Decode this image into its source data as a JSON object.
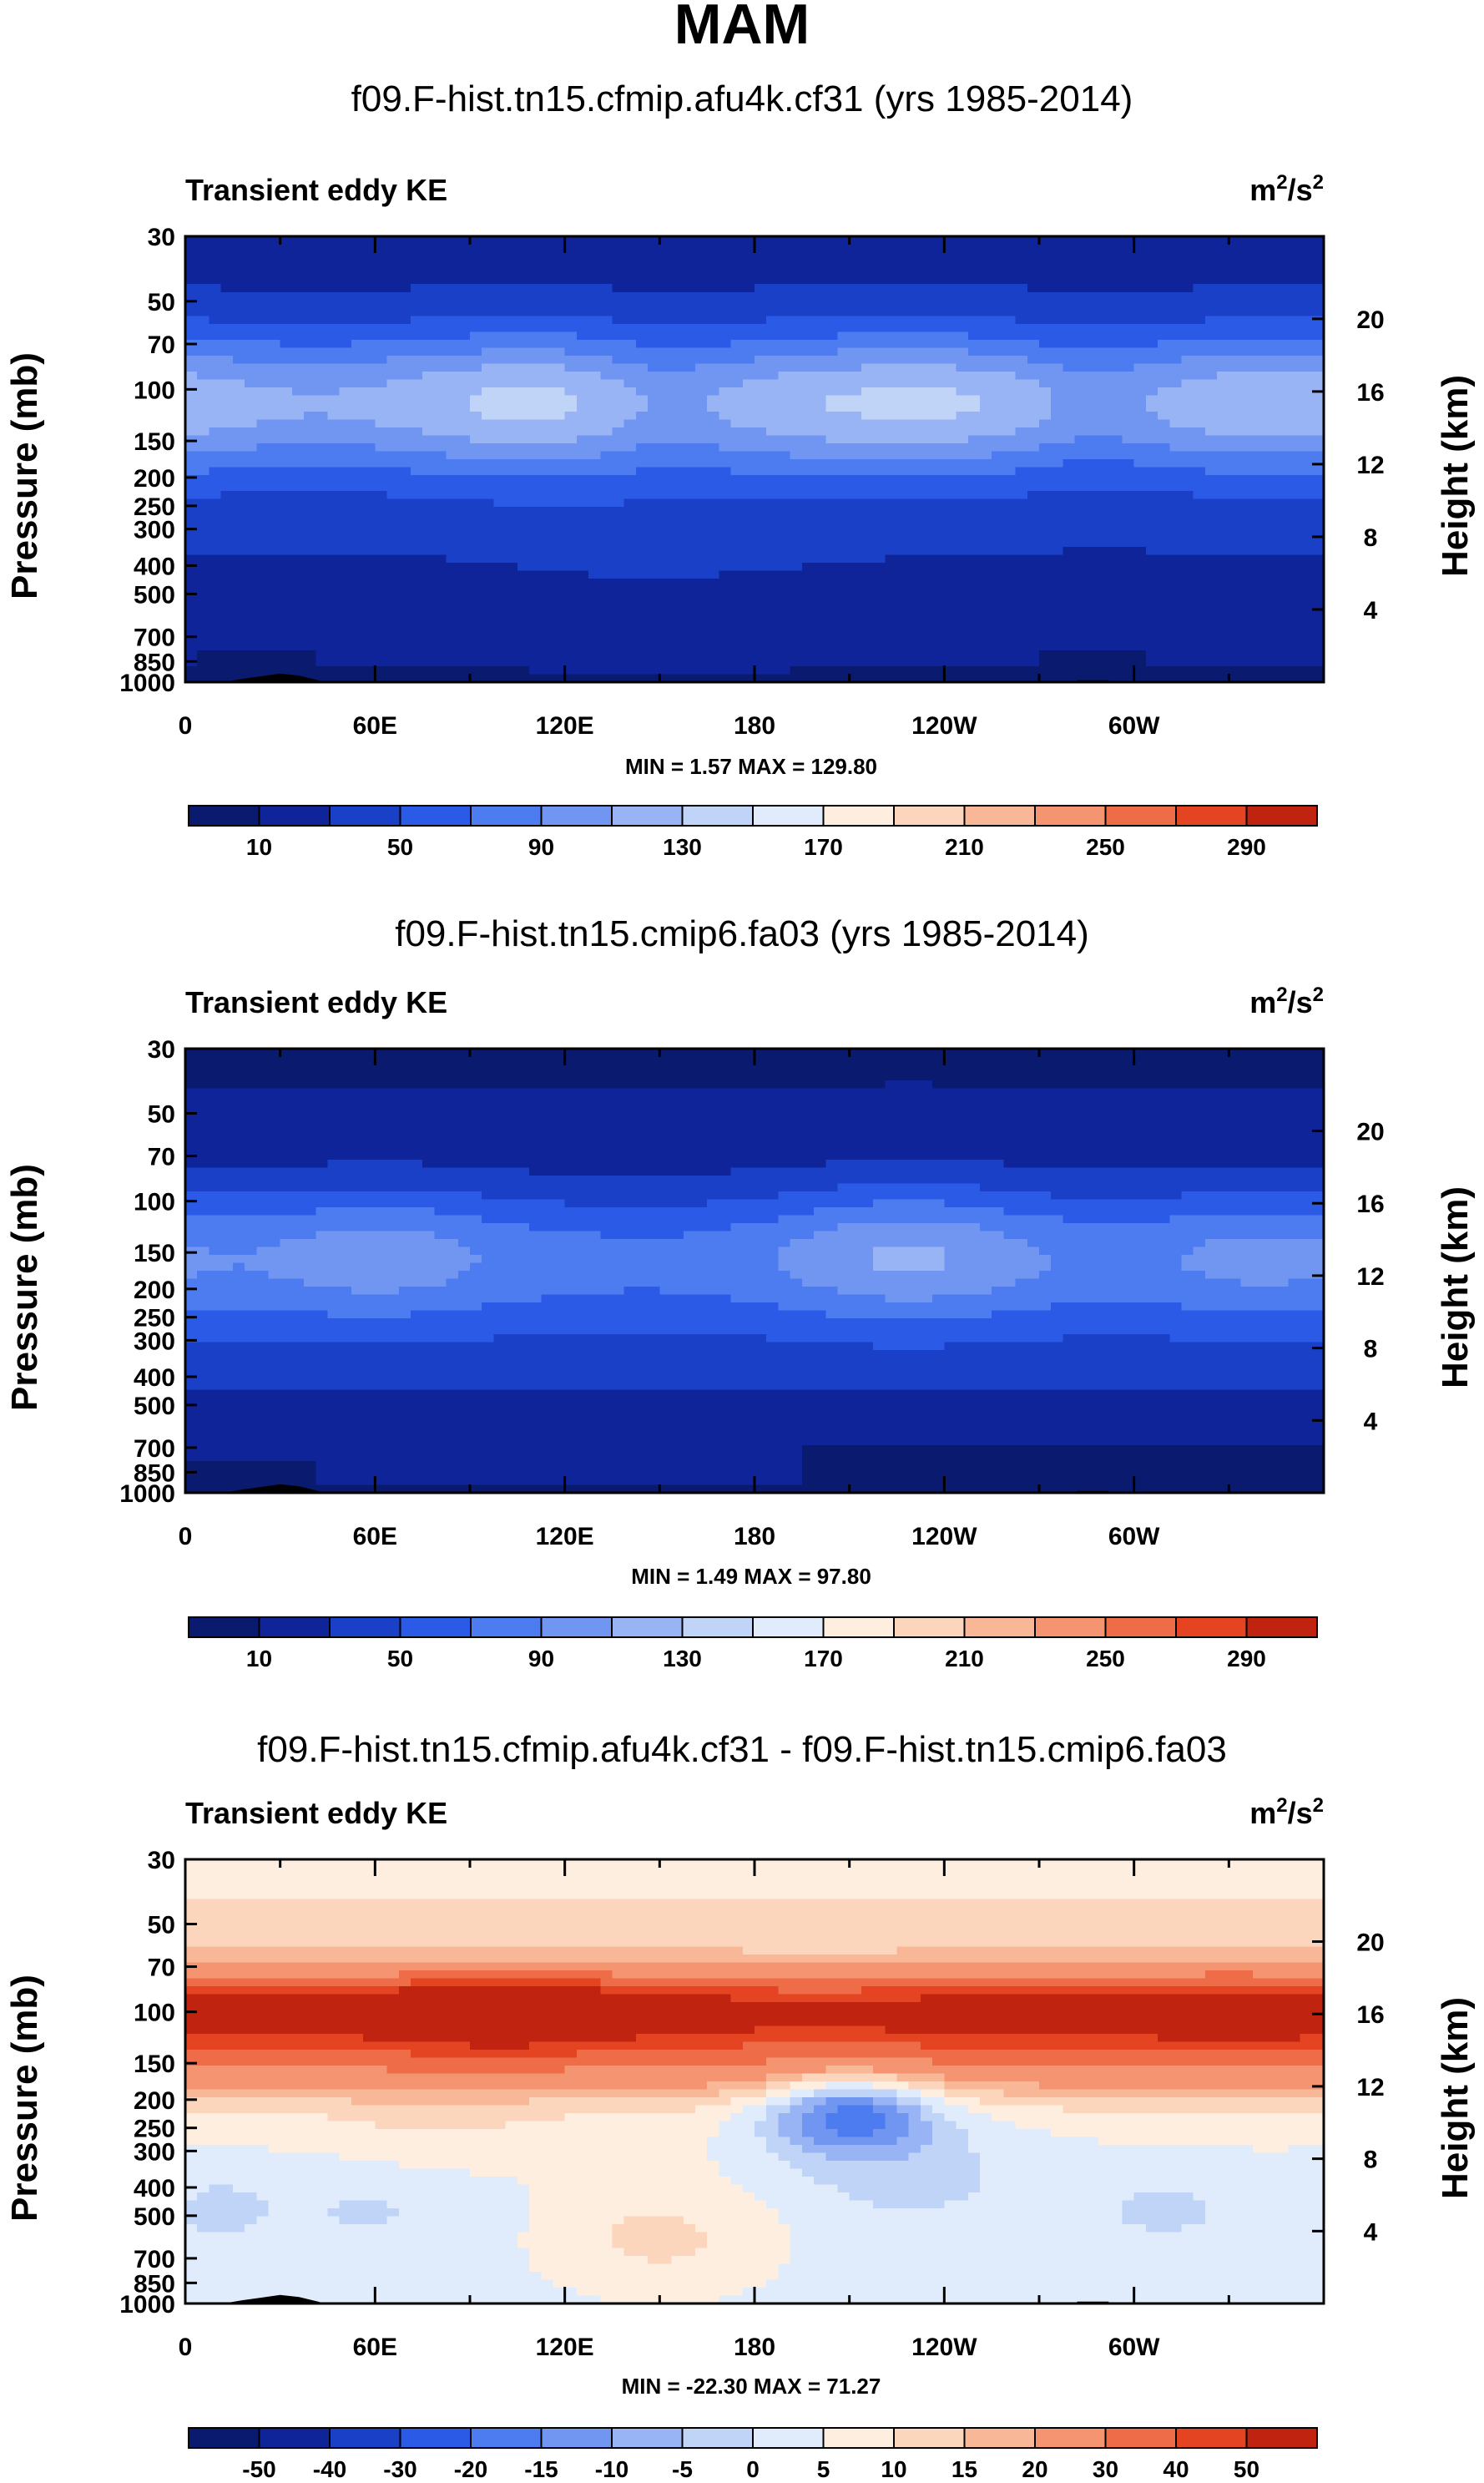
{
  "page": {
    "title": "MAM"
  },
  "axes": {
    "pressure_label": "Pressure (mb)",
    "height_label": "Height (km)",
    "pressure_ticks": [
      30,
      50,
      70,
      100,
      150,
      200,
      250,
      300,
      400,
      500,
      700,
      850,
      1000
    ],
    "height_ticks": [
      4,
      8,
      12,
      16,
      20
    ],
    "lon_ticks": [
      {
        "lon": 0,
        "label": "0"
      },
      {
        "lon": 60,
        "label": "60E"
      },
      {
        "lon": 120,
        "label": "120E"
      },
      {
        "lon": 180,
        "label": "180"
      },
      {
        "lon": 240,
        "label": "120W"
      },
      {
        "lon": 300,
        "label": "60W"
      }
    ],
    "lon_range": [
      0,
      360
    ],
    "pressure_range": [
      30,
      1000
    ]
  },
  "palettes": {
    "abs": [
      "#0a1a6e",
      "#10249a",
      "#1a40c8",
      "#2a5ae6",
      "#4d7cf0",
      "#7096f2",
      "#98b4f4",
      "#c0d4f8",
      "#e0ecfc",
      "#fdeee0",
      "#fcd6bc",
      "#f8b898",
      "#f49470",
      "#ee6c48",
      "#e44422",
      "#c02410",
      "#8c0c06"
    ],
    "diff": [
      "#0a1a6e",
      "#10249a",
      "#1a40c8",
      "#2a5ae6",
      "#4d7cf0",
      "#7096f2",
      "#98b4f4",
      "#c0d4f8",
      "#e0ecfc",
      "#fdeee0",
      "#fcd6bc",
      "#f8b898",
      "#f49470",
      "#ee6c48",
      "#e44422",
      "#c02410",
      "#8c0c06"
    ]
  },
  "chart_data": [
    {
      "type": "heatmap",
      "title": "f09.F-hist.tn15.cfmip.afu4k.cf31 (yrs 1985-2014)",
      "left_label": "Transient eddy KE",
      "units_base": "m",
      "units_exp": "2",
      "units_tail": "/s",
      "units_exp2": "2",
      "min_max": "MIN =   1.57  MAX = 129.80",
      "colorbar_labels": [
        "10",
        "50",
        "90",
        "130",
        "170",
        "210",
        "250",
        "290"
      ],
      "colorbar_levels": [
        0,
        10,
        30,
        50,
        70,
        90,
        110,
        130,
        150,
        170,
        190,
        210,
        230,
        250,
        270,
        290,
        310
      ],
      "field": "case1"
    },
    {
      "type": "heatmap",
      "title": "f09.F-hist.tn15.cmip6.fa03 (yrs 1985-2014)",
      "left_label": "Transient eddy KE",
      "units_base": "m",
      "units_exp": "2",
      "units_tail": "/s",
      "units_exp2": "2",
      "min_max": "MIN =   1.49  MAX = 97.80",
      "colorbar_labels": [
        "10",
        "50",
        "90",
        "130",
        "170",
        "210",
        "250",
        "290"
      ],
      "colorbar_levels": [
        0,
        10,
        30,
        50,
        70,
        90,
        110,
        130,
        150,
        170,
        190,
        210,
        230,
        250,
        270,
        290,
        310
      ],
      "field": "case2"
    },
    {
      "type": "heatmap",
      "title": "f09.F-hist.tn15.cfmip.afu4k.cf31 - f09.F-hist.tn15.cmip6.fa03",
      "left_label": "Transient eddy KE",
      "units_base": "m",
      "units_exp": "2",
      "units_tail": "/s",
      "units_exp2": "2",
      "min_max": "MIN = -22.30  MAX = 71.27",
      "colorbar_labels": [
        "-50",
        "-40",
        "-30",
        "-20",
        "-15",
        "-10",
        "-5",
        "0",
        "5",
        "10",
        "15",
        "20",
        "30",
        "40",
        "50"
      ],
      "colorbar_levels": [
        -60,
        -50,
        -40,
        -30,
        -20,
        -15,
        -10,
        -5,
        0,
        5,
        10,
        15,
        20,
        30,
        40,
        50,
        60
      ],
      "field": "diff"
    }
  ]
}
